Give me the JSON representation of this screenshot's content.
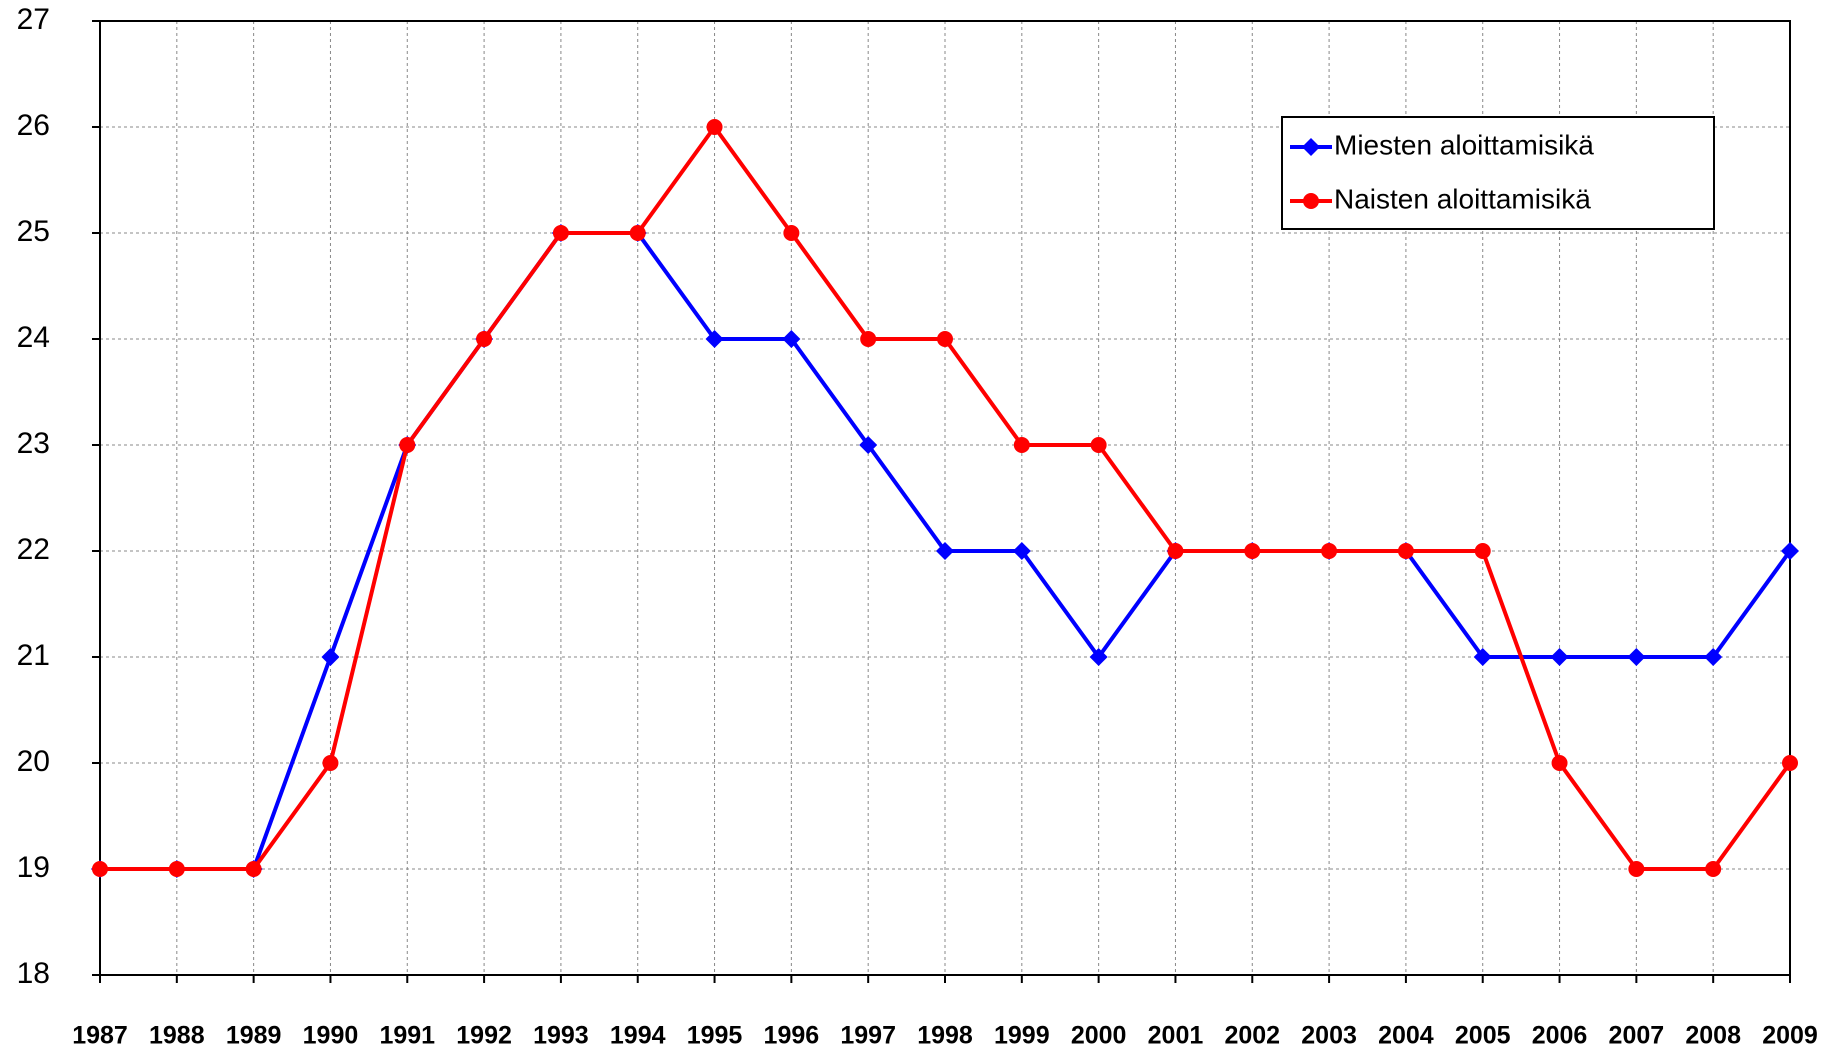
{
  "chart_data": {
    "type": "line",
    "categories": [
      "1987",
      "1988",
      "1989",
      "1990",
      "1991",
      "1992",
      "1993",
      "1994",
      "1995",
      "1996",
      "1997",
      "1998",
      "1999",
      "2000",
      "2001",
      "2002",
      "2003",
      "2004",
      "2005",
      "2006",
      "2007",
      "2008",
      "2009"
    ],
    "series": [
      {
        "name": "Miesten aloittamisikä",
        "color": "#0000ff",
        "marker": "diamond",
        "values": [
          19,
          19,
          19,
          21,
          23,
          24,
          25,
          25,
          24,
          24,
          23,
          22,
          22,
          21,
          22,
          22,
          22,
          22,
          21,
          21,
          21,
          21,
          22
        ]
      },
      {
        "name": "Naisten aloittamisikä",
        "color": "#ff0000",
        "marker": "circle",
        "values": [
          19,
          19,
          19,
          20,
          23,
          24,
          25,
          25,
          26,
          25,
          24,
          24,
          23,
          23,
          22,
          22,
          22,
          22,
          22,
          20,
          19,
          19,
          20
        ]
      }
    ],
    "ylim": [
      18,
      27
    ],
    "yticks": [
      18,
      19,
      20,
      21,
      22,
      23,
      24,
      25,
      26,
      27
    ],
    "grid": true,
    "legend": "upper right"
  }
}
